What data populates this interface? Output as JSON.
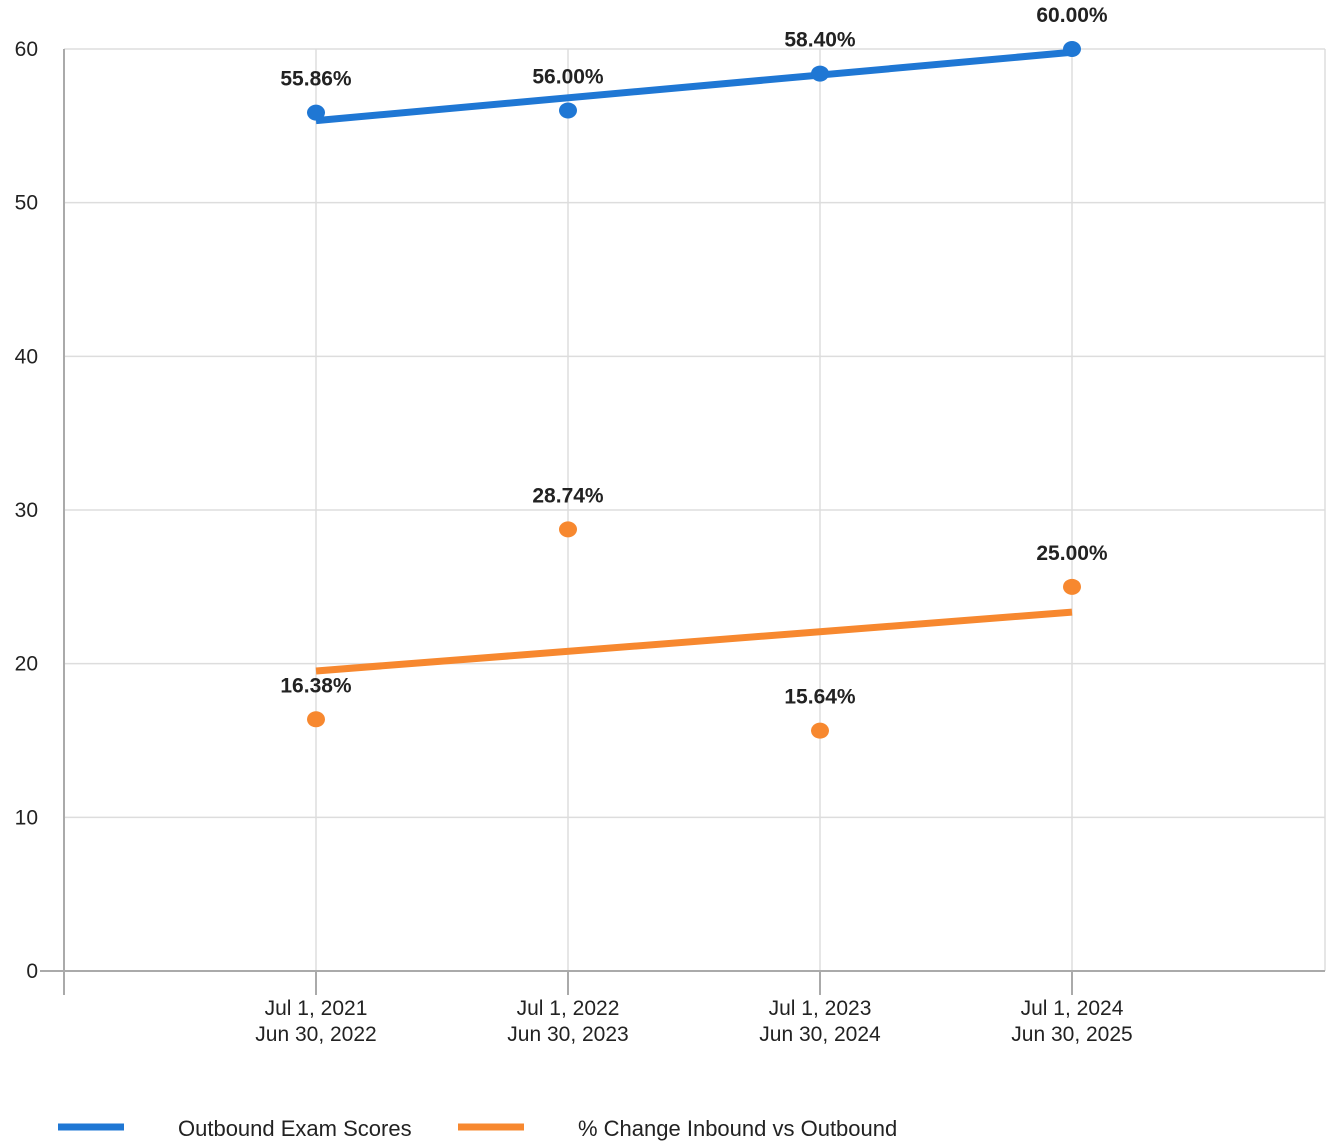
{
  "chart_data": {
    "type": "scatter",
    "title": "",
    "xlabel": "",
    "ylabel": "",
    "ylim": [
      0,
      60
    ],
    "y_ticks": [
      "0",
      "10",
      "20",
      "30",
      "40",
      "50",
      "60"
    ],
    "grid": true,
    "categories": [
      [
        "Jul 1, 2021",
        "Jun 30, 2022"
      ],
      [
        "Jul 1, 2022",
        "Jun 30, 2023"
      ],
      [
        "Jul 1, 2023",
        "Jun 30, 2024"
      ],
      [
        "Jul 1, 2024",
        "Jun 30, 2025"
      ]
    ],
    "series": [
      {
        "name": "Outbound Exam Scores",
        "color": "#1f77d4",
        "values": [
          55.86,
          56.0,
          58.4,
          60.0
        ],
        "labels": [
          "55.86%",
          "56.00%",
          "58.40%",
          "60.00%"
        ],
        "label_position": [
          "above",
          "above",
          "above",
          "above"
        ],
        "trendline": true
      },
      {
        "name": "% Change Inbound vs Outbound",
        "color": "#f7882f",
        "values": [
          16.38,
          28.74,
          15.64,
          25.0
        ],
        "labels": [
          "16.38%",
          "28.74%",
          "15.64%",
          "25.00%"
        ],
        "label_position": [
          "above",
          "above",
          "above",
          "above"
        ],
        "trendline": true
      }
    ],
    "legend_position": "bottom-left"
  }
}
